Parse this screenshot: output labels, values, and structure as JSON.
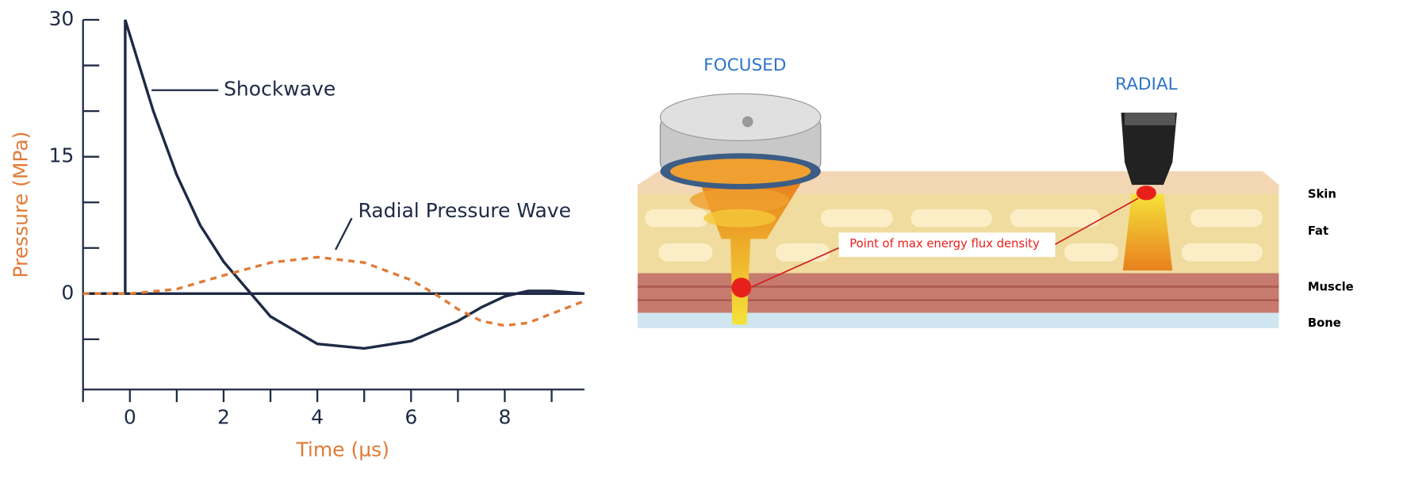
{
  "chart_data": {
    "type": "line",
    "xlabel": "Time (µs)",
    "ylabel": "Pressure (MPa)",
    "xlim": [
      -1,
      9.7
    ],
    "ylim": [
      -10.5,
      30
    ],
    "xticks": [
      0,
      2,
      4,
      6,
      8
    ],
    "minor_xticks": [
      -1,
      1,
      3,
      5,
      7,
      9
    ],
    "yticks": [
      0,
      15,
      30
    ],
    "minor_yticks": [
      -5,
      5,
      10,
      20,
      25
    ],
    "axis_color": "#1e2a45",
    "label_color": "#e07b39",
    "series": [
      {
        "name": "Shockwave",
        "color": "#1e2a45",
        "dashed": false,
        "x": [
          -1,
          -0.1,
          -0.1,
          0.5,
          1,
          1.5,
          2,
          2.5,
          3,
          4,
          5,
          6,
          7,
          7.5,
          8,
          8.5,
          9,
          9.7
        ],
        "values": [
          0,
          0,
          30,
          20,
          13,
          7.5,
          3.5,
          0.5,
          -2.5,
          -5.5,
          -6,
          -5.2,
          -3,
          -1.5,
          -0.3,
          0.3,
          0.3,
          0
        ]
      },
      {
        "name": "Radial Pressure Wave",
        "color": "#e07b39",
        "dashed": true,
        "x": [
          -1,
          0,
          1,
          2,
          3,
          4,
          5,
          6,
          6.5,
          7,
          7.5,
          8,
          8.5,
          9,
          9.7
        ],
        "values": [
          0,
          0,
          0.5,
          2,
          3.4,
          4,
          3.4,
          1.5,
          0,
          -1.7,
          -3,
          -3.5,
          -3.2,
          -2.2,
          -0.8
        ]
      }
    ]
  },
  "diagram": {
    "focused": "FOCUSED",
    "radial": "RADIAL",
    "callout": "Point of max energy flux density",
    "layers": [
      "Skin",
      "Fat",
      "Muscle",
      "Bone"
    ]
  }
}
